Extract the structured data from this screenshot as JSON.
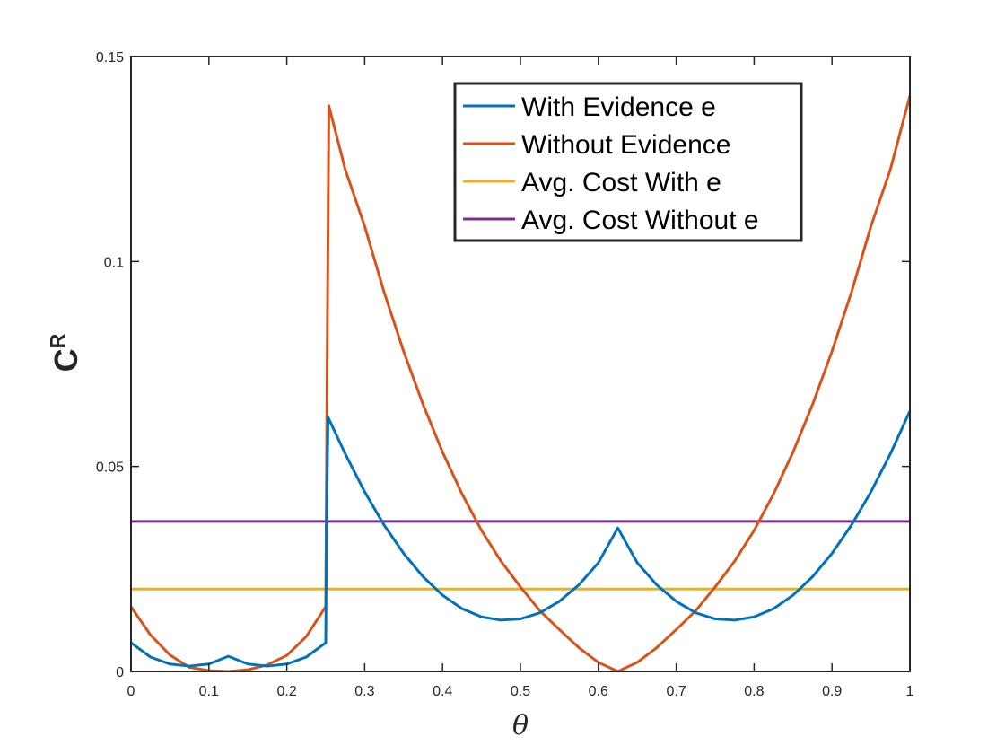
{
  "chart_data": {
    "type": "line",
    "title": "",
    "xlabel": "θ",
    "ylabel": "C",
    "ylabel_superscript": "R",
    "xlim": [
      0,
      1
    ],
    "ylim": [
      0,
      0.15
    ],
    "xticks": [
      0,
      0.1,
      0.2,
      0.3,
      0.4,
      0.5,
      0.6,
      0.7,
      0.8,
      0.9,
      1
    ],
    "xtick_labels": [
      "0",
      "0.1",
      "0.2",
      "0.3",
      "0.4",
      "0.5",
      "0.6",
      "0.7",
      "0.8",
      "0.9",
      "1"
    ],
    "yticks": [
      0,
      0.05,
      0.1,
      0.15
    ],
    "ytick_labels": [
      "0",
      "0.05",
      "0.1",
      "0.15"
    ],
    "grid": false,
    "legend_position": "top-right",
    "series": [
      {
        "name": "With Evidence e",
        "color": "#0072BD",
        "x": [
          0,
          0.025,
          0.05,
          0.075,
          0.1,
          0.125,
          0.15,
          0.175,
          0.2,
          0.225,
          0.25,
          0.251,
          0.253,
          0.275,
          0.3,
          0.325,
          0.35,
          0.375,
          0.4,
          0.425,
          0.45,
          0.475,
          0.5,
          0.525,
          0.55,
          0.575,
          0.6,
          0.625,
          0.65,
          0.675,
          0.7,
          0.725,
          0.75,
          0.775,
          0.8,
          0.825,
          0.85,
          0.875,
          0.9,
          0.925,
          0.95,
          0.975,
          1
        ],
        "y": [
          0.007,
          0.0035,
          0.0018,
          0.0013,
          0.0018,
          0.0037,
          0.0018,
          0.0013,
          0.0018,
          0.0035,
          0.007,
          0.035,
          0.062,
          0.0531,
          0.0438,
          0.0357,
          0.0288,
          0.0231,
          0.0186,
          0.0153,
          0.0133,
          0.0125,
          0.0128,
          0.0143,
          0.0171,
          0.0211,
          0.0265,
          0.035,
          0.0265,
          0.0211,
          0.0171,
          0.0143,
          0.0128,
          0.0125,
          0.0133,
          0.0153,
          0.0186,
          0.0231,
          0.0288,
          0.0357,
          0.0438,
          0.0531,
          0.0635
        ]
      },
      {
        "name": "Without Evidence",
        "color": "#D95319",
        "x": [
          0,
          0.025,
          0.05,
          0.075,
          0.1,
          0.125,
          0.15,
          0.175,
          0.2,
          0.225,
          0.25,
          0.252,
          0.254,
          0.275,
          0.3,
          0.325,
          0.35,
          0.375,
          0.4,
          0.425,
          0.45,
          0.475,
          0.5,
          0.525,
          0.55,
          0.575,
          0.6,
          0.625,
          0.65,
          0.675,
          0.7,
          0.725,
          0.75,
          0.775,
          0.8,
          0.825,
          0.85,
          0.875,
          0.9,
          0.925,
          0.95,
          0.975,
          1
        ],
        "y": [
          0.0158,
          0.0089,
          0.004,
          0.001,
          0.0002,
          0.0,
          0.0004,
          0.0016,
          0.0039,
          0.0085,
          0.0158,
          0.08,
          0.138,
          0.1225,
          0.1086,
          0.0925,
          0.0781,
          0.0651,
          0.0535,
          0.0433,
          0.0344,
          0.0269,
          0.0206,
          0.0148,
          0.0102,
          0.0058,
          0.0022,
          0.0,
          0.0022,
          0.0058,
          0.0102,
          0.0148,
          0.0206,
          0.0269,
          0.0344,
          0.0433,
          0.0535,
          0.0651,
          0.0781,
          0.0925,
          0.1086,
          0.1225,
          0.1404
        ]
      },
      {
        "name": "Avg. Cost With e",
        "color": "#EDB120",
        "x": [
          0,
          1
        ],
        "y": [
          0.0201,
          0.0201
        ]
      },
      {
        "name": "Avg. Cost Without e",
        "color": "#7E2F8E",
        "x": [
          0,
          1
        ],
        "y": [
          0.0366,
          0.0366
        ]
      }
    ]
  }
}
